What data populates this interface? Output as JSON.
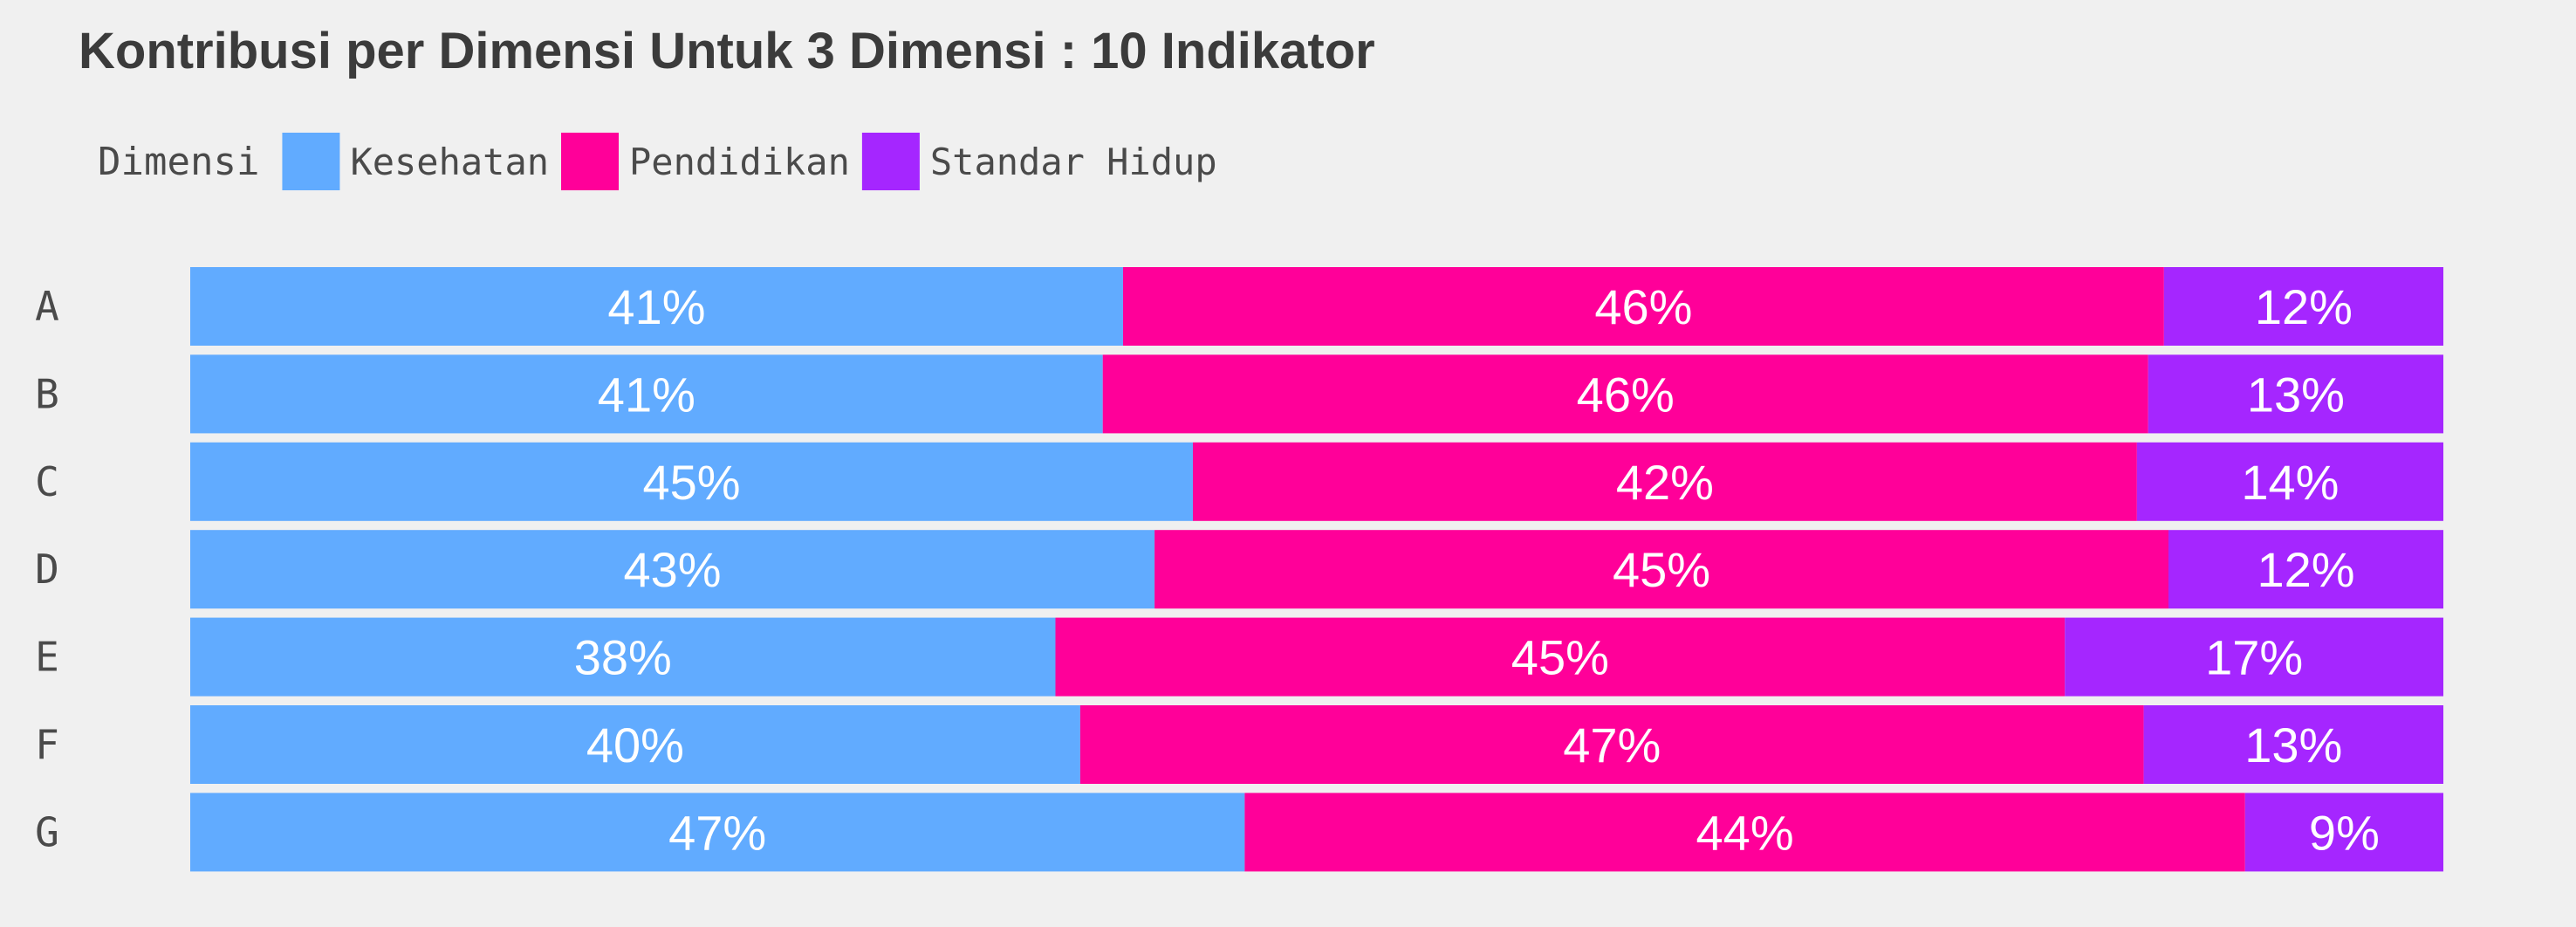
{
  "chart_data": {
    "type": "bar",
    "orientation": "horizontal",
    "stacked": "percent",
    "title": "Kontribusi per Dimensi Untuk 3 Dimensi : 10 Indikator",
    "legend_title": "Dimensi",
    "legend_position": "top-left",
    "grid": false,
    "xlim": [
      0,
      100
    ],
    "categories": [
      "A",
      "B",
      "C",
      "D",
      "E",
      "F",
      "G"
    ],
    "series": [
      {
        "name": "Kesehatan",
        "color": "#61abff",
        "values": [
          41.4,
          40.5,
          44.5,
          42.8,
          38.4,
          39.5,
          46.8
        ],
        "labels": [
          "41%",
          "41%",
          "45%",
          "43%",
          "38%",
          "40%",
          "47%"
        ]
      },
      {
        "name": "Pendidikan",
        "color": "#ff0099",
        "values": [
          46.2,
          46.4,
          41.9,
          45.0,
          44.8,
          47.2,
          44.4
        ],
        "labels": [
          "46%",
          "46%",
          "42%",
          "45%",
          "45%",
          "47%",
          "44%"
        ]
      },
      {
        "name": "Standar Hidup",
        "color": "#a526ff",
        "values": [
          12.4,
          13.1,
          13.6,
          12.2,
          16.8,
          13.3,
          8.8
        ],
        "labels": [
          "12%",
          "13%",
          "14%",
          "12%",
          "17%",
          "13%",
          "9%"
        ]
      }
    ]
  }
}
